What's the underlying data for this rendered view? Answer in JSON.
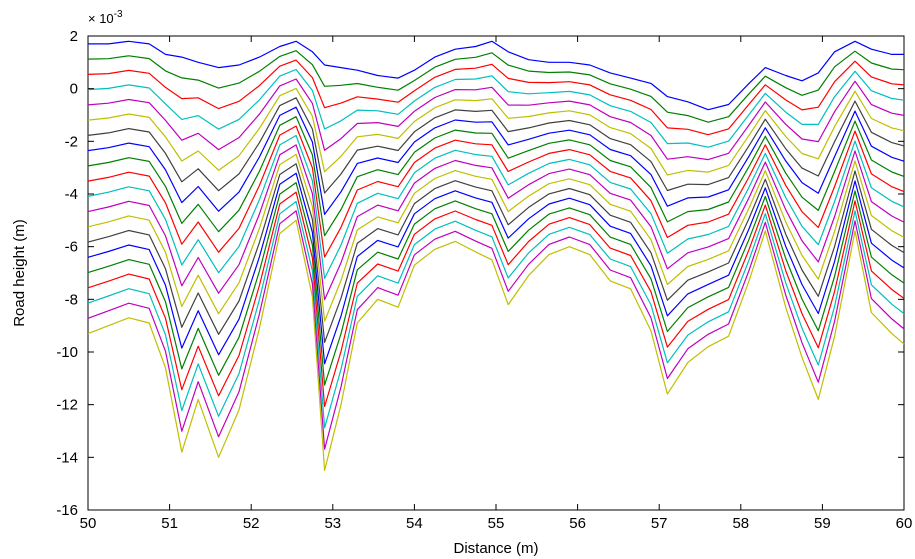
{
  "chart_data": {
    "type": "line",
    "title": "",
    "xlabel": "Distance (m)",
    "ylabel": "Road height (m)",
    "y_exponent_prefix": "× 10",
    "y_exponent_power": "-3",
    "xlim": [
      50,
      60
    ],
    "ylim": [
      -16,
      2
    ],
    "xticks": [
      "50",
      "51",
      "52",
      "53",
      "54",
      "55",
      "56",
      "57",
      "58",
      "59",
      "60"
    ],
    "yticks": [
      "2",
      "0",
      "-2",
      "-4",
      "-6",
      "-8",
      "-10",
      "-12",
      "-14",
      "-16"
    ],
    "ytick_values": [
      2,
      0,
      -2,
      -4,
      -6,
      -8,
      -10,
      -12,
      -14,
      -16
    ],
    "grid": false,
    "legend": "none",
    "x": [
      50.0,
      50.25,
      50.5,
      50.75,
      50.95,
      51.15,
      51.35,
      51.6,
      51.85,
      52.1,
      52.35,
      52.55,
      52.75,
      52.9,
      53.1,
      53.3,
      53.55,
      53.8,
      54.0,
      54.25,
      54.5,
      54.75,
      54.95,
      55.15,
      55.4,
      55.65,
      55.9,
      56.15,
      56.4,
      56.65,
      56.9,
      57.1,
      57.35,
      57.6,
      57.85,
      58.1,
      58.3,
      58.55,
      58.75,
      58.95,
      59.15,
      59.4,
      59.6,
      59.85,
      60.0
    ],
    "top_profile": [
      1.7,
      1.7,
      1.8,
      1.7,
      1.3,
      1.2,
      1.0,
      0.8,
      0.9,
      1.2,
      1.6,
      1.8,
      1.4,
      0.9,
      0.8,
      0.7,
      0.5,
      0.4,
      0.7,
      1.2,
      1.5,
      1.6,
      1.8,
      1.4,
      1.1,
      1.0,
      1.0,
      0.9,
      0.6,
      0.4,
      0.2,
      -0.3,
      -0.5,
      -0.8,
      -0.6,
      0.2,
      0.8,
      0.5,
      0.3,
      0.6,
      1.4,
      1.8,
      1.5,
      1.3,
      1.3
    ],
    "bottom_profile": [
      -9.3,
      -9.0,
      -8.7,
      -8.9,
      -10.6,
      -13.8,
      -11.8,
      -14.0,
      -12.2,
      -9.1,
      -5.5,
      -5.0,
      -7.9,
      -14.5,
      -12.0,
      -8.9,
      -8.0,
      -8.3,
      -6.7,
      -6.1,
      -5.8,
      -6.2,
      -6.5,
      -8.2,
      -7.1,
      -6.3,
      -6.0,
      -6.3,
      -7.3,
      -7.6,
      -9.2,
      -11.6,
      -10.4,
      -9.8,
      -9.4,
      -7.3,
      -5.4,
      -8.3,
      -10.2,
      -11.8,
      -9.4,
      -5.4,
      -8.5,
      -9.3,
      -9.7
    ],
    "series_count": 20,
    "colors": [
      "#0000ff",
      "#008000",
      "#ff0000",
      "#00bfbf",
      "#bf00bf",
      "#bfbf00",
      "#404040"
    ]
  }
}
